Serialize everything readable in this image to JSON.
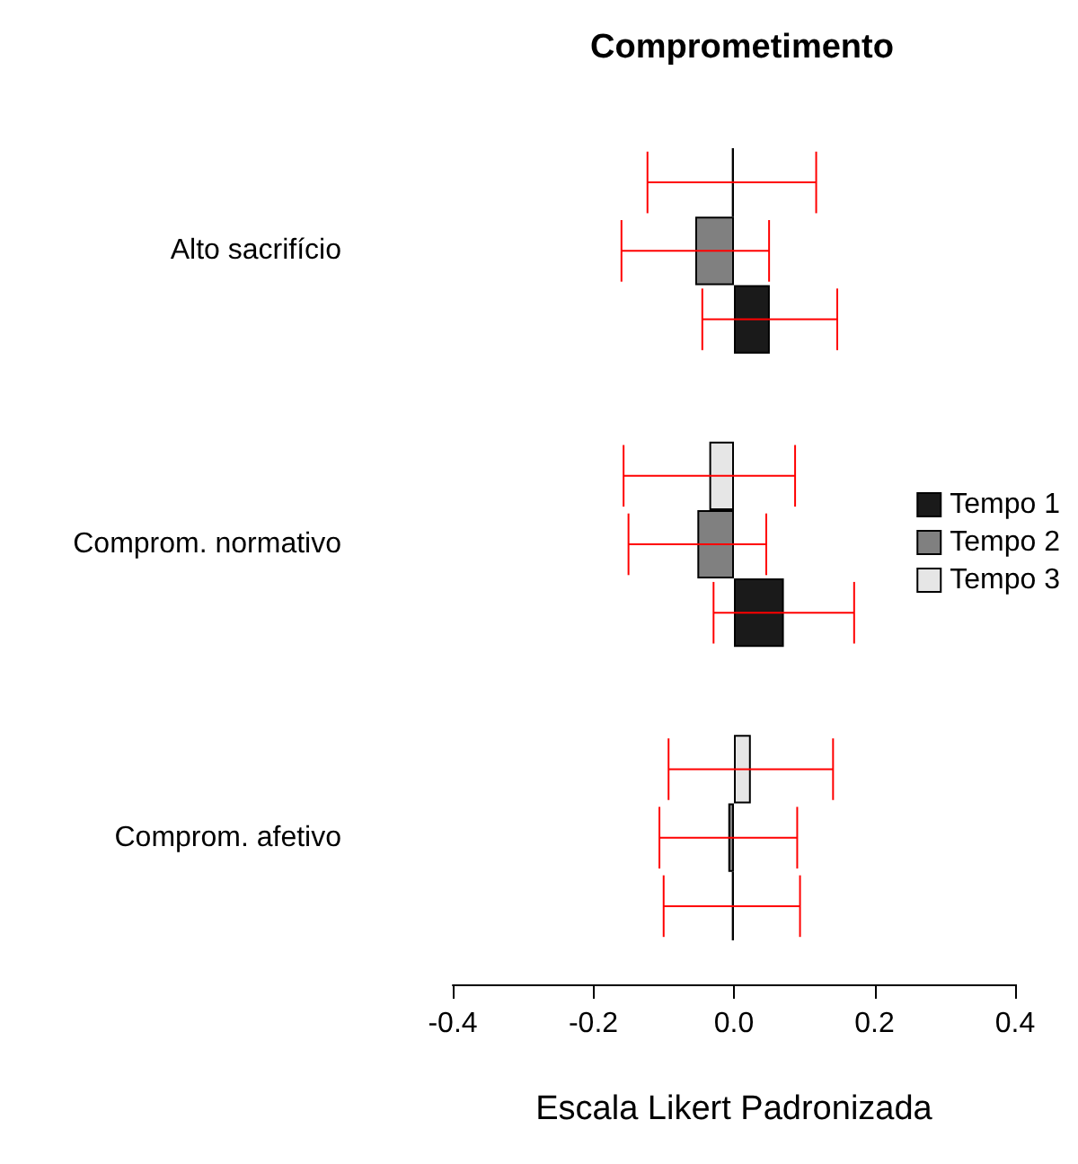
{
  "chart_data": {
    "type": "bar",
    "orientation": "horizontal",
    "title": "Comprometimento",
    "xlabel": "Escala Likert Padronizada",
    "categories": [
      "Alto sacrifício",
      "Comprom. normativo",
      "Comprom. afetivo"
    ],
    "series": [
      {
        "name": "Tempo 1",
        "color": "#1a1a1a",
        "values": [
          0.051,
          0.071,
          -0.003
        ],
        "errors": [
          0.096,
          0.1,
          0.097
        ]
      },
      {
        "name": "Tempo 2",
        "color": "#808080",
        "values": [
          -0.055,
          -0.052,
          -0.008
        ],
        "errors": [
          0.105,
          0.098,
          0.098
        ]
      },
      {
        "name": "Tempo 3",
        "color": "#e6e6e6",
        "values": [
          -0.003,
          -0.035,
          0.024
        ],
        "errors": [
          0.12,
          0.122,
          0.117
        ]
      }
    ],
    "xlim": [
      -0.4,
      0.4
    ],
    "xticks": [
      -0.4,
      -0.2,
      {
        "value": 0,
        "label": "0.0"
      },
      0.2,
      0.4
    ],
    "grid": false,
    "legend": "right"
  }
}
